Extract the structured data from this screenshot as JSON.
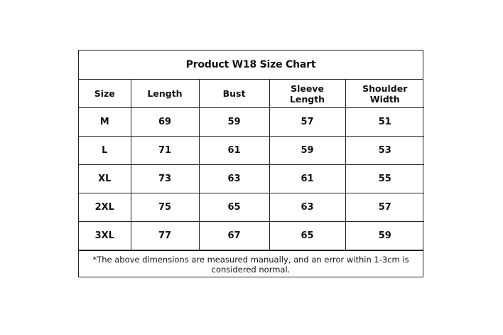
{
  "title": "Product W18 Size Chart",
  "columns": [
    "Size",
    "Length",
    "Bust",
    "Sleeve Length",
    "Shoulder Width"
  ],
  "rows": [
    [
      "M",
      "69",
      "59",
      "57",
      "51"
    ],
    [
      "L",
      "71",
      "61",
      "59",
      "53"
    ],
    [
      "XL",
      "73",
      "63",
      "61",
      "55"
    ],
    [
      "2XL",
      "75",
      "65",
      "63",
      "57"
    ],
    [
      "3XL",
      "77",
      "67",
      "65",
      "59"
    ]
  ],
  "note": "*The above dimensions are measured manually, and an error within 1-3cm is considered normal."
}
